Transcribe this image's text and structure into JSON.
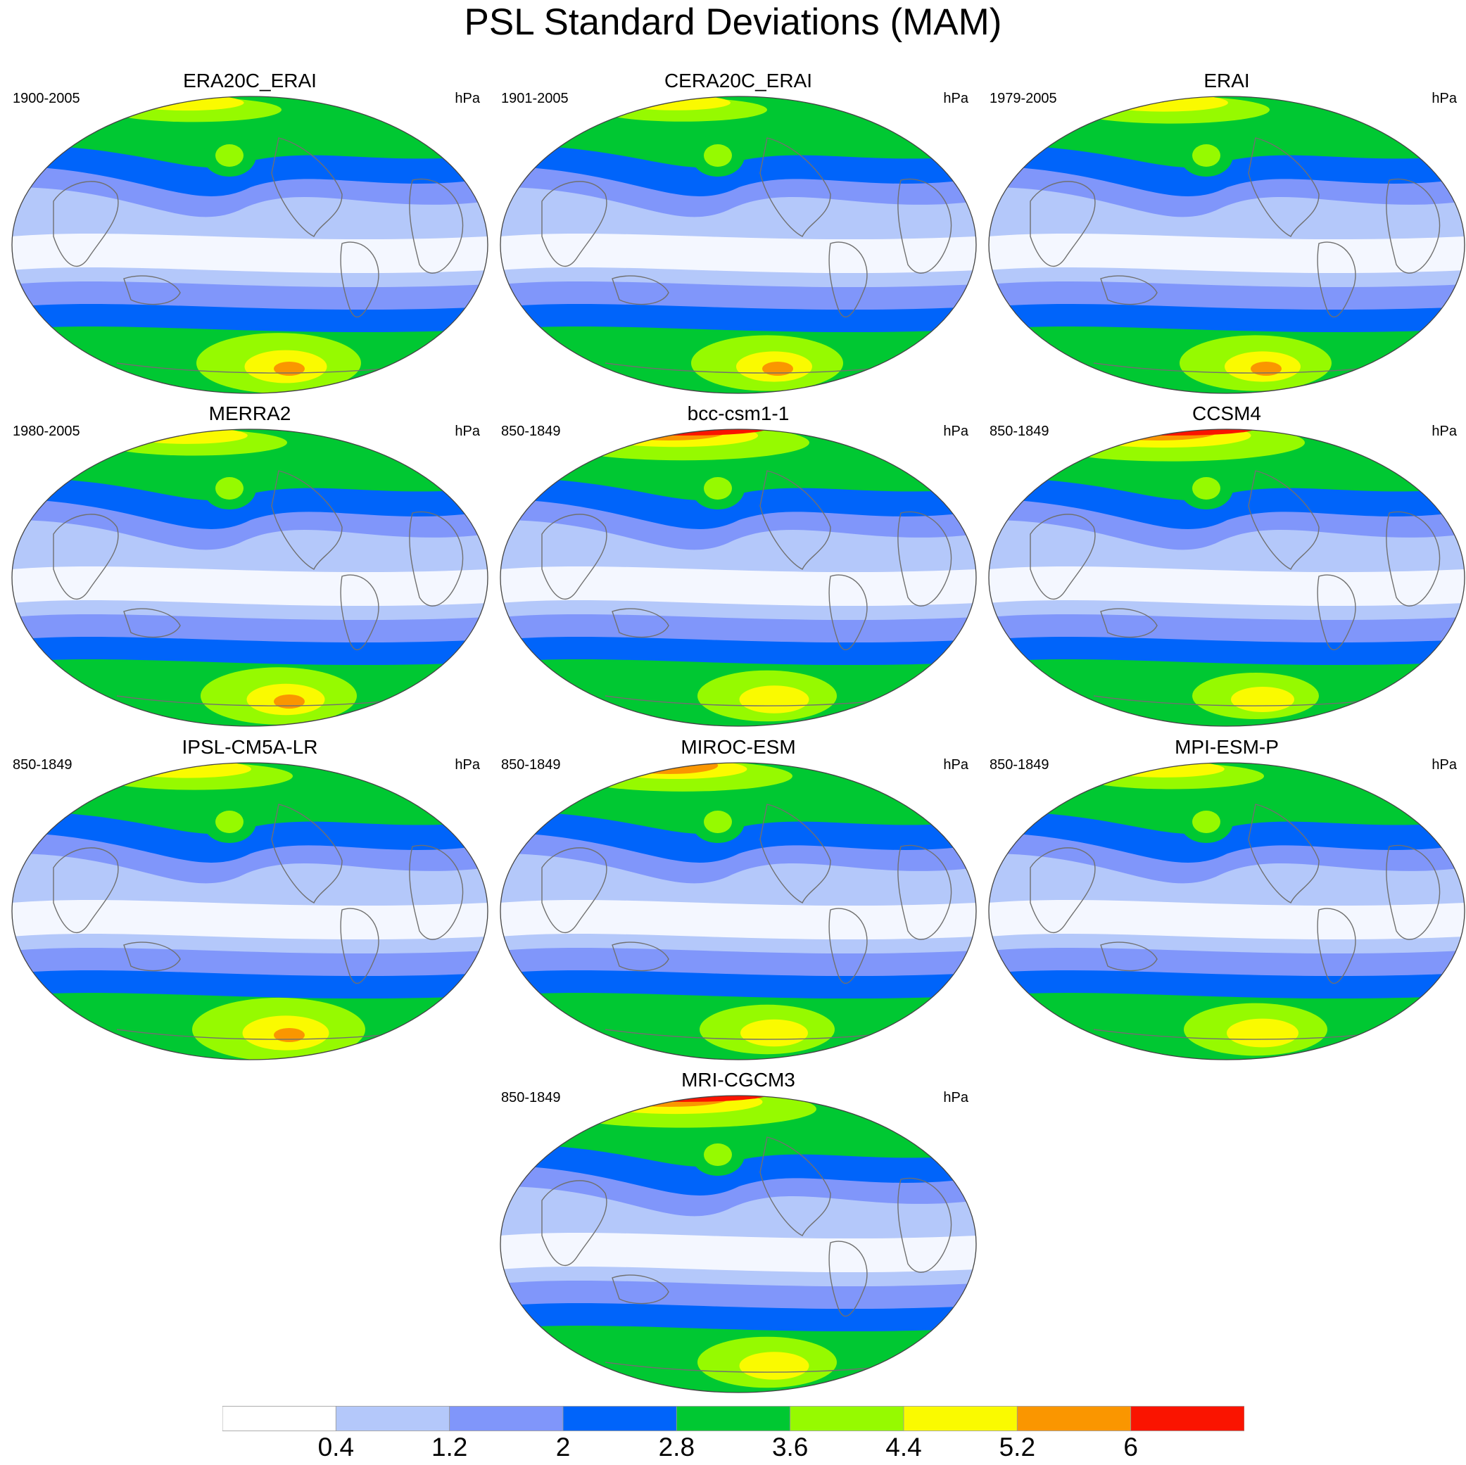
{
  "title": "PSL Standard Deviations (MAM)",
  "units": "hPa",
  "panels": [
    {
      "name": "ERA20C_ERAI",
      "period": "1900-2005",
      "n_strength": 0.62,
      "s_strength": 0.78
    },
    {
      "name": "CERA20C_ERAI",
      "period": "1901-2005",
      "n_strength": 0.6,
      "s_strength": 0.72
    },
    {
      "name": "ERAI",
      "period": "1979-2005",
      "n_strength": 0.7,
      "s_strength": 0.72
    },
    {
      "name": "MERRA2",
      "period": "1980-2005",
      "n_strength": 0.66,
      "s_strength": 0.74
    },
    {
      "name": "bcc-csm1-1",
      "period": "850-1849",
      "n_strength": 0.9,
      "s_strength": 0.66
    },
    {
      "name": "CCSM4",
      "period": "850-1849",
      "n_strength": 0.95,
      "s_strength": 0.6
    },
    {
      "name": "IPSL-CM5A-LR",
      "period": "850-1849",
      "n_strength": 0.7,
      "s_strength": 0.82
    },
    {
      "name": "MIROC-ESM",
      "period": "850-1849",
      "n_strength": 0.78,
      "s_strength": 0.64
    },
    {
      "name": "MPI-ESM-P",
      "period": "850-1849",
      "n_strength": 0.66,
      "s_strength": 0.68
    },
    {
      "name": "MRI-CGCM3",
      "period": "850-1849",
      "n_strength": 0.95,
      "s_strength": 0.66
    }
  ],
  "colorbar": {
    "labels": [
      "0.4",
      "1.2",
      "2",
      "2.8",
      "3.6",
      "4.4",
      "5.2",
      "6"
    ],
    "colors": [
      "#ffffff",
      "#b4c8fa",
      "#8096fa",
      "#0064fa",
      "#00c832",
      "#96fa00",
      "#fafa00",
      "#fa9600",
      "#fa1400"
    ]
  }
}
